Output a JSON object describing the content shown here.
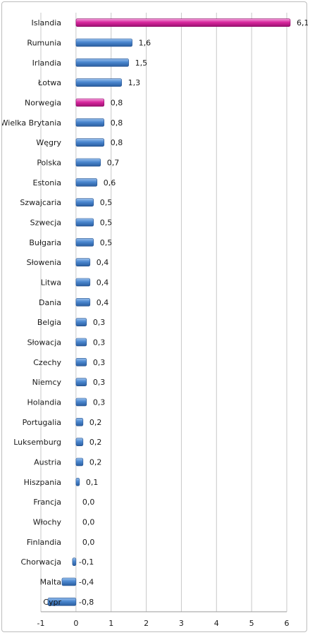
{
  "chart_data": {
    "type": "bar",
    "orientation": "horizontal",
    "categories": [
      "Islandia",
      "Rumunia",
      "Irlandia",
      "Łotwa",
      "Norwegia",
      "Wielka Brytania",
      "Węgry",
      "Polska",
      "Estonia",
      "Szwajcaria",
      "Szwecja",
      "Bułgaria",
      "Słowenia",
      "Litwa",
      "Dania",
      "Belgia",
      "Słowacja",
      "Czechy",
      "Niemcy",
      "Holandia",
      "Portugalia",
      "Luksemburg",
      "Austria",
      "Hiszpania",
      "Francja",
      "Włochy",
      "Finlandia",
      "Chorwacja",
      "Malta",
      "Cypr"
    ],
    "values": [
      6.1,
      1.6,
      1.5,
      1.3,
      0.8,
      0.8,
      0.8,
      0.7,
      0.6,
      0.5,
      0.5,
      0.5,
      0.4,
      0.4,
      0.4,
      0.3,
      0.3,
      0.3,
      0.3,
      0.3,
      0.2,
      0.2,
      0.2,
      0.1,
      0.0,
      0.0,
      0.0,
      -0.1,
      -0.4,
      -0.8
    ],
    "value_labels": [
      "6,1",
      "1,6",
      "1,5",
      "1,3",
      "0,8",
      "0,8",
      "0,8",
      "0,7",
      "0,6",
      "0,5",
      "0,5",
      "0,5",
      "0,4",
      "0,4",
      "0,4",
      "0,3",
      "0,3",
      "0,3",
      "0,3",
      "0,3",
      "0,2",
      "0,2",
      "0,2",
      "0,1",
      "0,0",
      "0,0",
      "0,0",
      "-0,1",
      "-0,4",
      "-0,8"
    ],
    "highlighted": [
      "Islandia",
      "Norwegia"
    ],
    "xlim": [
      -1,
      6
    ],
    "xticks": [
      "-1",
      "0",
      "1",
      "2",
      "3",
      "4",
      "5",
      "6"
    ],
    "grid": "vertical",
    "legend": "none",
    "colors": {
      "default_bar": "#4a86cf",
      "highlight_bar": "#d9279e"
    }
  }
}
